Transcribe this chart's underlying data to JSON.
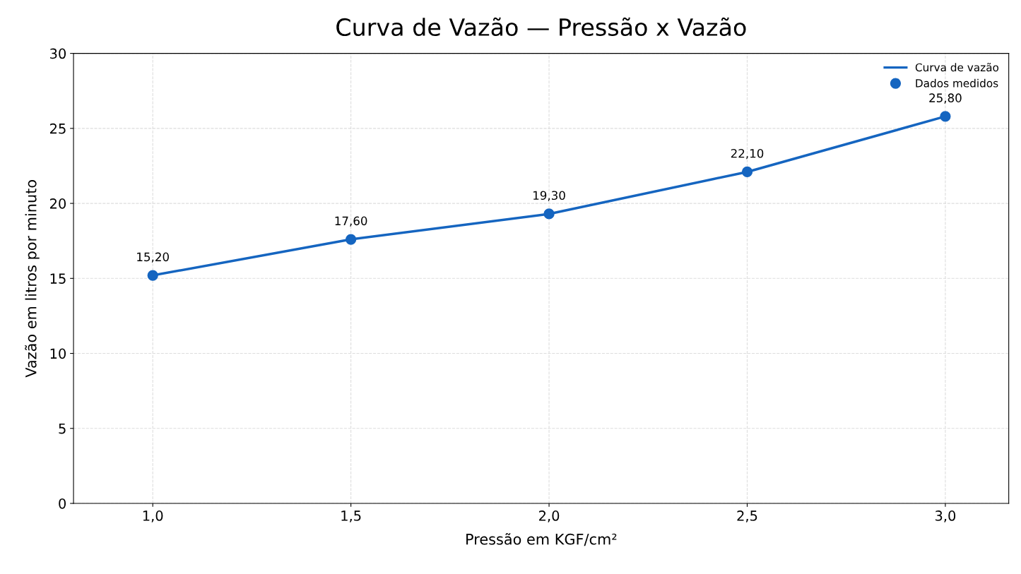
{
  "chart_data": {
    "type": "line",
    "title": "Curva de Vazão — Pressão x Vazão",
    "xlabel": "Pressão em KGF/cm²",
    "ylabel": "Vazão em litros por minuto",
    "x": [
      1.0,
      1.5,
      2.0,
      2.5,
      3.0
    ],
    "series": [
      {
        "name": "Curva de vazão",
        "color": "#1565c0",
        "values": [
          15.2,
          17.6,
          19.3,
          22.1,
          25.8
        ]
      },
      {
        "name": "Dados medidos",
        "type": "scatter",
        "marker": "circle",
        "color": "#1565c0",
        "values": [
          15.2,
          17.6,
          19.3,
          22.1,
          25.8
        ],
        "value_labels": [
          "15,20",
          "17,60",
          "19,30",
          "22,10",
          "25,80"
        ]
      }
    ],
    "xlim": [
      0.8,
      3.16
    ],
    "xticks": [
      {
        "value": 1.0,
        "label": "1,0"
      },
      {
        "value": 1.5,
        "label": "1,5"
      },
      {
        "value": 2.0,
        "label": "2,0"
      },
      {
        "value": 2.5,
        "label": "2,5"
      },
      {
        "value": 3.0,
        "label": "3,0"
      }
    ],
    "ylim": [
      0,
      30
    ],
    "yticks": [
      0,
      5,
      10,
      15,
      20,
      25,
      30
    ],
    "grid": true,
    "line_style": "solid",
    "legend": "top right"
  }
}
